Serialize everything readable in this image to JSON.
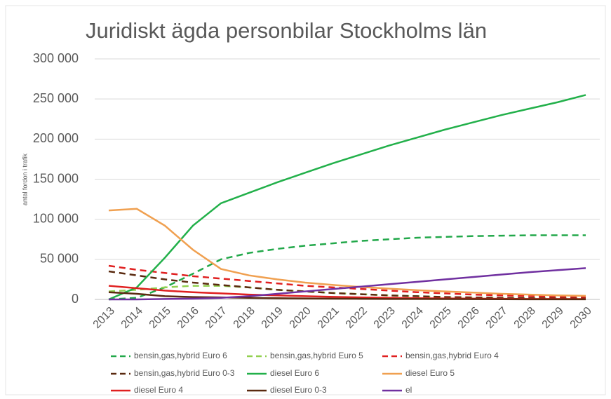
{
  "chart_data": {
    "type": "line",
    "title": "Juridiskt ägda personbilar Stockholms län",
    "y_label": "antal fordon i trafik",
    "categories": [
      "2013",
      "2014",
      "2015",
      "2016",
      "2017",
      "2018",
      "2019",
      "2020",
      "2021",
      "2022",
      "2023",
      "2024",
      "2025",
      "2026",
      "2027",
      "2028",
      "2029",
      "2030"
    ],
    "ylim": [
      0,
      300000
    ],
    "yticks": [
      0,
      {
        "value": 50000,
        "label": "50 000"
      },
      {
        "value": 100000,
        "label": "100 000"
      },
      {
        "value": 150000,
        "label": "150 000"
      },
      {
        "value": 200000,
        "label": "200 000"
      },
      {
        "value": 250000,
        "label": "250 000"
      },
      {
        "value": 300000,
        "label": "300 000"
      }
    ],
    "grid": true,
    "legend": "bottom",
    "series": [
      {
        "name": "bensin,gas,hybrid Euro 6",
        "color": "#22a84a",
        "dashed": true,
        "values": [
          0,
          2000,
          15000,
          32000,
          50000,
          58000,
          63000,
          67000,
          70000,
          73000,
          75000,
          77000,
          78000,
          79000,
          79500,
          80000,
          80000,
          80000
        ]
      },
      {
        "name": "bensin,gas,hybrid Euro 5",
        "color": "#92d050",
        "dashed": true,
        "values": [
          10000,
          12000,
          15000,
          17000,
          17000,
          15000,
          12000,
          10000,
          8000,
          6500,
          5000,
          4000,
          3000,
          2500,
          2000,
          1500,
          1200,
          1000
        ]
      },
      {
        "name": "bensin,gas,hybrid Euro 4",
        "color": "#e02020",
        "dashed": true,
        "values": [
          42000,
          37000,
          33000,
          29000,
          26000,
          23000,
          20000,
          17000,
          15000,
          13000,
          11000,
          9000,
          7500,
          6000,
          5000,
          4000,
          3000,
          2500
        ]
      },
      {
        "name": "bensin,gas,hybrid Euro 0-3",
        "color": "#5a2a10",
        "dashed": true,
        "values": [
          35000,
          30000,
          25000,
          21000,
          18000,
          15000,
          12000,
          10000,
          8000,
          6500,
          5000,
          4000,
          3000,
          2500,
          2000,
          1500,
          1200,
          1000
        ]
      },
      {
        "name": "diesel Euro 6",
        "color": "#22b04a",
        "dashed": false,
        "values": [
          0,
          15000,
          52000,
          92000,
          120000,
          133000,
          146000,
          158000,
          170000,
          181000,
          192000,
          202000,
          212000,
          221000,
          230000,
          238000,
          246000,
          255000
        ]
      },
      {
        "name": "diesel Euro 5",
        "color": "#f0a050",
        "dashed": false,
        "values": [
          111000,
          113000,
          92000,
          62000,
          38000,
          30000,
          25000,
          21000,
          18000,
          15500,
          13500,
          11500,
          10000,
          8500,
          7000,
          6000,
          5000,
          4500
        ]
      },
      {
        "name": "diesel Euro 4",
        "color": "#e02020",
        "dashed": false,
        "values": [
          17000,
          14000,
          11000,
          9000,
          7500,
          6000,
          5000,
          4000,
          3200,
          2500,
          2000,
          1500,
          1200,
          1000,
          800,
          600,
          500,
          400
        ]
      },
      {
        "name": "diesel Euro 0-3",
        "color": "#5a2a10",
        "dashed": false,
        "values": [
          9000,
          7000,
          4000,
          3000,
          2500,
          2000,
          1500,
          1200,
          1000,
          800,
          600,
          500,
          400,
          300,
          200,
          150,
          100,
          100
        ]
      },
      {
        "name": "el",
        "color": "#7030a0",
        "dashed": false,
        "values": [
          0,
          0,
          500,
          1000,
          2000,
          4000,
          7000,
          10000,
          13000,
          16000,
          19000,
          22000,
          25000,
          28000,
          31000,
          34000,
          36500,
          39000
        ]
      }
    ]
  }
}
